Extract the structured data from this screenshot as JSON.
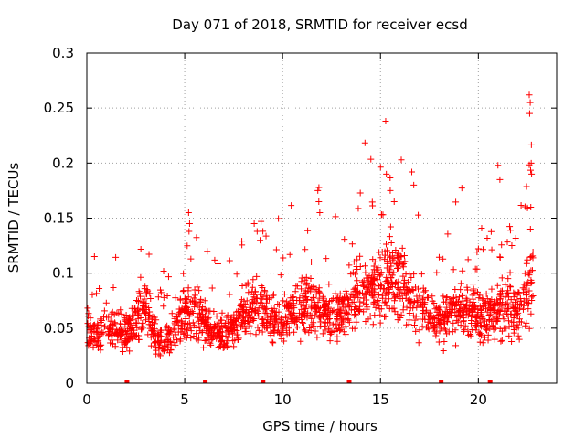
{
  "chart_data": {
    "type": "scatter",
    "title": "Day 071 of 2018, SRMTID for receiver ecsd",
    "xlabel": "GPS time / hours",
    "ylabel": "SRMTID / TECUs",
    "xlim": [
      0,
      24
    ],
    "ylim": [
      0,
      0.3
    ],
    "xticks": [
      0,
      5,
      10,
      15,
      20
    ],
    "xtick_labels": [
      "0",
      "5",
      "10",
      "15",
      "20"
    ],
    "yticks": [
      0,
      0.05,
      0.1,
      0.15,
      0.2,
      0.25,
      0.3
    ],
    "ytick_labels": [
      "0",
      "0.05",
      "0.1",
      "0.15",
      "0.2",
      "0.25",
      "0.3"
    ],
    "grid": true,
    "marker": "+",
    "color": "#ff0000",
    "gap_markers_x": [
      2.05,
      6.05,
      9.0,
      13.4,
      18.1,
      20.6
    ],
    "trend": [
      [
        0.0,
        0.05
      ],
      [
        0.5,
        0.04
      ],
      [
        1.0,
        0.052
      ],
      [
        1.5,
        0.05
      ],
      [
        2.0,
        0.045
      ],
      [
        2.5,
        0.06
      ],
      [
        3.0,
        0.072
      ],
      [
        3.5,
        0.042
      ],
      [
        4.0,
        0.036
      ],
      [
        4.5,
        0.05
      ],
      [
        5.0,
        0.062
      ],
      [
        5.5,
        0.066
      ],
      [
        6.0,
        0.055
      ],
      [
        6.5,
        0.046
      ],
      [
        7.0,
        0.042
      ],
      [
        7.5,
        0.05
      ],
      [
        8.0,
        0.06
      ],
      [
        8.5,
        0.072
      ],
      [
        9.0,
        0.065
      ],
      [
        9.5,
        0.055
      ],
      [
        10.0,
        0.055
      ],
      [
        10.5,
        0.062
      ],
      [
        11.0,
        0.07
      ],
      [
        11.5,
        0.075
      ],
      [
        12.0,
        0.068
      ],
      [
        12.5,
        0.06
      ],
      [
        13.0,
        0.065
      ],
      [
        13.5,
        0.072
      ],
      [
        14.0,
        0.085
      ],
      [
        14.5,
        0.08
      ],
      [
        15.0,
        0.09
      ],
      [
        15.5,
        0.098
      ],
      [
        16.0,
        0.09
      ],
      [
        16.5,
        0.075
      ],
      [
        17.0,
        0.07
      ],
      [
        17.5,
        0.062
      ],
      [
        18.0,
        0.058
      ],
      [
        18.5,
        0.062
      ],
      [
        19.0,
        0.07
      ],
      [
        19.5,
        0.066
      ],
      [
        20.0,
        0.063
      ],
      [
        20.5,
        0.06
      ],
      [
        21.0,
        0.068
      ],
      [
        21.5,
        0.075
      ],
      [
        22.0,
        0.065
      ],
      [
        22.5,
        0.085
      ],
      [
        22.8,
        0.1
      ]
    ],
    "spikes": [
      {
        "x": 5.2,
        "y": 0.155
      },
      {
        "x": 5.25,
        "y": 0.145
      },
      {
        "x": 5.22,
        "y": 0.138
      },
      {
        "x": 8.55,
        "y": 0.145
      },
      {
        "x": 8.9,
        "y": 0.147
      },
      {
        "x": 8.7,
        "y": 0.138
      },
      {
        "x": 11.8,
        "y": 0.175
      },
      {
        "x": 11.85,
        "y": 0.165
      },
      {
        "x": 11.9,
        "y": 0.155
      },
      {
        "x": 15.3,
        "y": 0.19
      },
      {
        "x": 15.5,
        "y": 0.175
      },
      {
        "x": 16.6,
        "y": 0.192
      },
      {
        "x": 16.7,
        "y": 0.18
      },
      {
        "x": 15.7,
        "y": 0.165
      },
      {
        "x": 21.0,
        "y": 0.198
      },
      {
        "x": 21.1,
        "y": 0.185
      },
      {
        "x": 22.6,
        "y": 0.262
      },
      {
        "x": 22.65,
        "y": 0.255
      },
      {
        "x": 22.62,
        "y": 0.245
      },
      {
        "x": 22.7,
        "y": 0.2
      },
      {
        "x": 22.72,
        "y": 0.19
      },
      {
        "x": 22.68,
        "y": 0.16
      },
      {
        "x": 22.66,
        "y": 0.14
      }
    ],
    "n_points": 1900,
    "seed": 71
  }
}
